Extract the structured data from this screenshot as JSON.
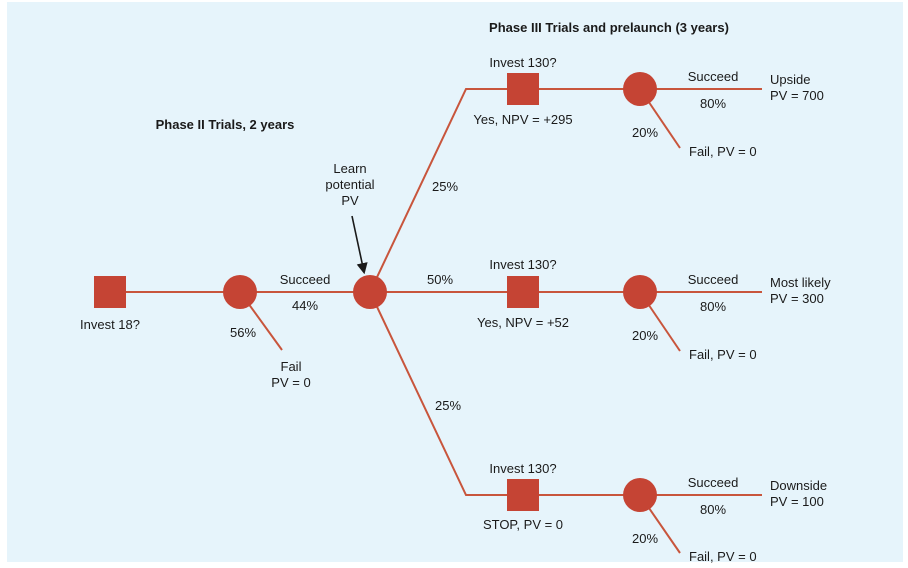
{
  "headings": {
    "phase2": "Phase II Trials, 2 years",
    "phase3": "Phase III Trials and prelaunch (3 years)"
  },
  "root": {
    "label": "Invest 18?",
    "succeed_label": "Succeed",
    "succeed_prob": "44%",
    "fail_prob": "56%",
    "fail_label_line1": "Fail",
    "fail_label_line2": "PV = 0"
  },
  "learn": {
    "line1": "Learn",
    "line2": "potential",
    "line3": "PV"
  },
  "branches": [
    {
      "prob": "25%",
      "decision_label": "Invest 130?",
      "decision_result": "Yes, NPV = +295",
      "succeed_label": "Succeed",
      "succeed_prob": "80%",
      "fail_prob": "20%",
      "fail_label": "Fail, PV = 0",
      "outcome_line1": "Upside",
      "outcome_line2": "PV = 700"
    },
    {
      "prob": "50%",
      "decision_label": "Invest 130?",
      "decision_result": "Yes, NPV = +52",
      "succeed_label": "Succeed",
      "succeed_prob": "80%",
      "fail_prob": "20%",
      "fail_label": "Fail, PV = 0",
      "outcome_line1": "Most likely",
      "outcome_line2": "PV = 300"
    },
    {
      "prob": "25%",
      "decision_label": "Invest 130?",
      "decision_result": "STOP, PV = 0",
      "succeed_label": "Succeed",
      "succeed_prob": "80%",
      "fail_prob": "20%",
      "fail_label": "Fail, PV = 0",
      "outcome_line1": "Downside",
      "outcome_line2": "PV = 100"
    }
  ],
  "colors": {
    "node": "#c54434",
    "edge": "#c8553c",
    "background": "#e6f4fb"
  }
}
